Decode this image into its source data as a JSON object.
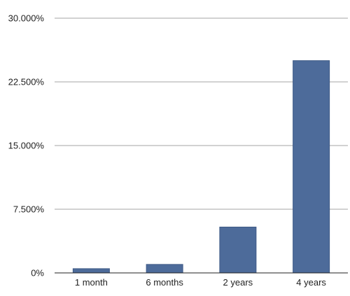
{
  "chart_data": {
    "type": "bar",
    "categories": [
      "1 month",
      "6 months",
      "2 years",
      "4 years"
    ],
    "values": [
      0.5,
      1.0,
      5.4,
      25.0
    ],
    "unit": "%",
    "ylim": [
      0,
      30
    ],
    "yticks": [
      0,
      7.5,
      15,
      22.5,
      30
    ],
    "ytick_labels": [
      "0%",
      "7.500%",
      "15.000%",
      "22.500%",
      "30.000%"
    ],
    "title": "",
    "xlabel": "",
    "ylabel": "",
    "grid": true,
    "legend": "none",
    "bar_color": "#4d6b9a"
  }
}
